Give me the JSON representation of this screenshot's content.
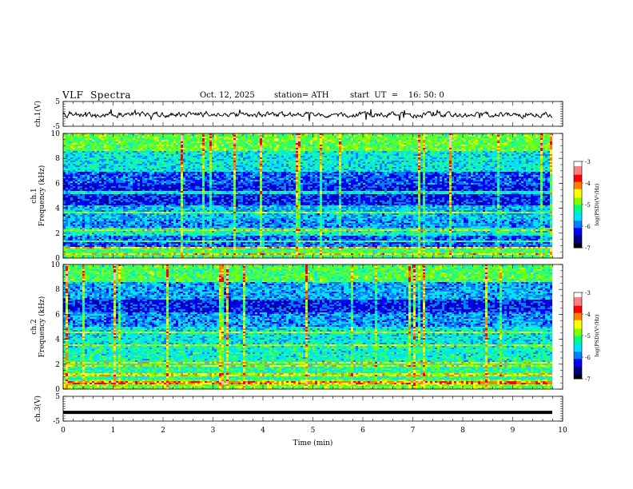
{
  "header": {
    "title": "VLF  Spectra",
    "date": "Oct. 12, 2025",
    "station": "station= ATH",
    "start": "start  UT  =    16: 50: 0"
  },
  "chart_data": {
    "type": "heatmap",
    "x_axis": {
      "label": "Time  (min)",
      "range": [
        0,
        10
      ],
      "ticks": [
        "0",
        "1",
        "2",
        "3",
        "4",
        "5",
        "6",
        "7",
        "8",
        "9",
        "10"
      ]
    },
    "panels": [
      {
        "id": "ch1-waveform",
        "type": "line",
        "ylabel": "ch.1(V)",
        "ylim": [
          -5,
          5
        ],
        "ticks": [
          "5",
          "-5"
        ]
      },
      {
        "id": "ch1-spectrogram",
        "type": "heatmap",
        "ylabel": "ch.1\nFrequency  (kHz)",
        "ylim": [
          0,
          10
        ],
        "ticks": [
          "10",
          "8",
          "6",
          "4",
          "2",
          "0"
        ],
        "colorbar": {
          "label": "log(PSD)(V²/Hz)",
          "range": [
            -7,
            -3
          ],
          "ticks": [
            "-3",
            "-4",
            "-5",
            "-6",
            "-7"
          ]
        }
      },
      {
        "id": "ch2-spectrogram",
        "type": "heatmap",
        "ylabel": "ch.2\nFrequency  (kHz)",
        "ylim": [
          0,
          10
        ],
        "ticks": [
          "10",
          "8",
          "6",
          "4",
          "2",
          "0"
        ],
        "colorbar": {
          "label": "log(PSD)(V²/Hz)",
          "range": [
            -7,
            -3
          ],
          "ticks": [
            "-3",
            "-4",
            "-5",
            "-6",
            "-7"
          ]
        }
      },
      {
        "id": "ch3-waveform",
        "type": "line",
        "ylabel": "ch.3(V)",
        "ylim": [
          -5,
          5
        ],
        "ticks": [
          "5",
          "-5"
        ],
        "value": -1.5
      }
    ],
    "colormap": [
      "#000090",
      "#0000ff",
      "#0080ff",
      "#00e0ff",
      "#20ff80",
      "#80ff00",
      "#ffff00",
      "#ff8000",
      "#ff0000",
      "#ffc0c0",
      "#ffffff"
    ]
  }
}
